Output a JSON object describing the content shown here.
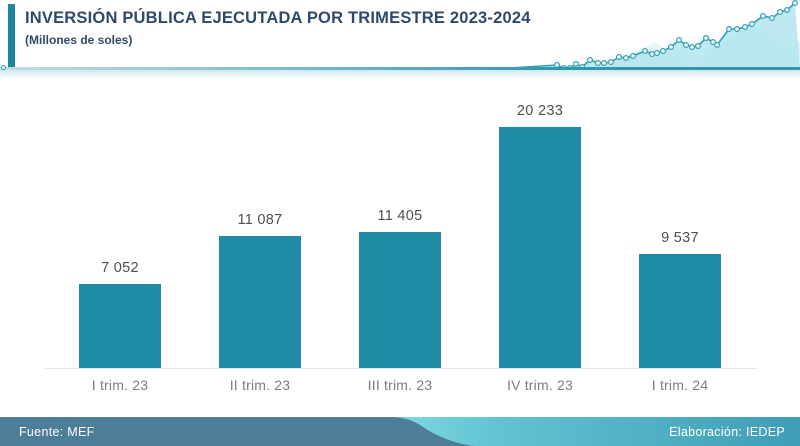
{
  "header": {
    "title": "INVERSIÓN PÚBLICA EJECUTADA POR TRIMESTRE 2023-2024",
    "subtitle": "(Millones de soles)"
  },
  "chart_data": {
    "type": "bar",
    "title": "INVERSIÓN PÚBLICA EJECUTADA POR TRIMESTRE 2023-2024",
    "subtitle": "(Millones de soles)",
    "categories": [
      "I trim. 23",
      "II trim. 23",
      "III trim. 23",
      "IV trim. 23",
      "I trim. 24"
    ],
    "values": [
      7052,
      11087,
      11405,
      20233,
      9537
    ],
    "value_labels": [
      "7 052",
      "11 087",
      "11 405",
      "20 233",
      "9 537"
    ],
    "xlabel": "",
    "ylabel": "Millones de soles",
    "ylim": [
      0,
      20233
    ],
    "grid": false,
    "legend": false,
    "bar_color": "#1f8ba4"
  },
  "footer": {
    "source": "Fuente: MEF",
    "credit": "Elaboración: IEDEP"
  },
  "colors": {
    "title": "#2d4a6b",
    "bar": "#1f8ba4",
    "accent": "#1d87a0",
    "sparkline_stroke": "#2fa0b5",
    "sparkline_fill": "#aee3ec",
    "footer_dark": "#4c7d99",
    "footer_teal": "#3f9db6"
  }
}
